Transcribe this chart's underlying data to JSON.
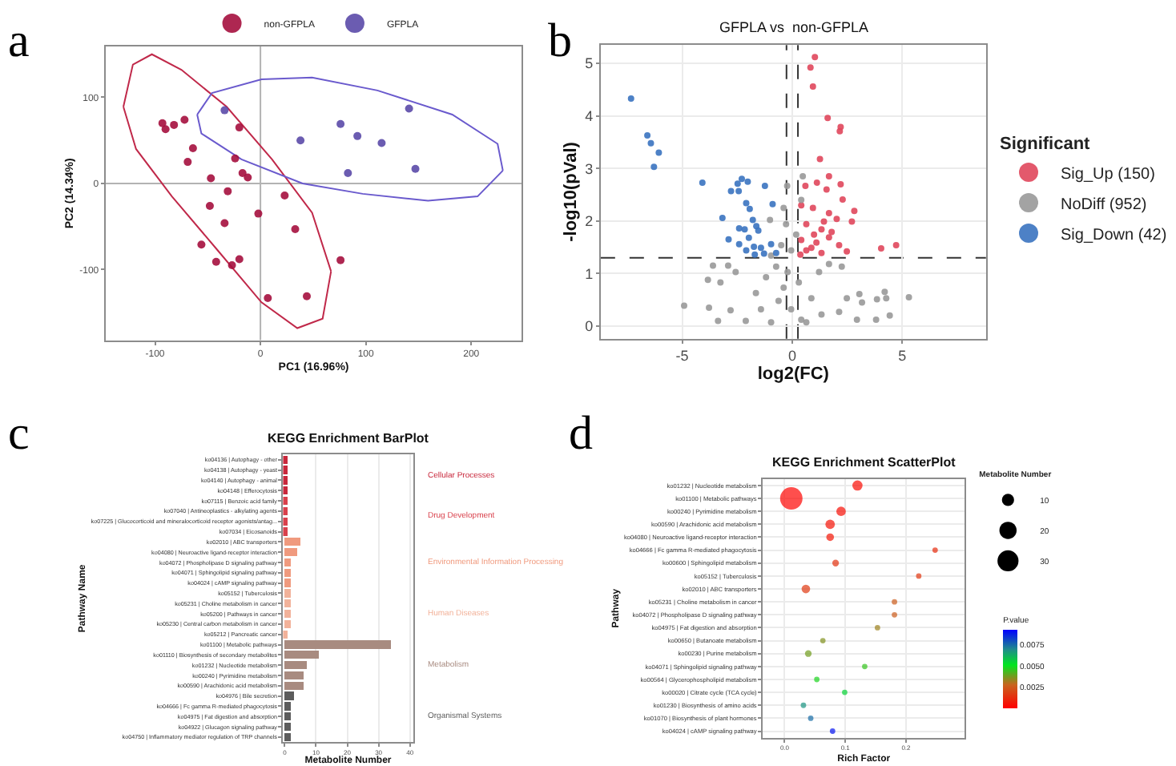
{
  "chart_data": [
    {
      "type": "scatter",
      "xlabel": "PC1 (16.96%)",
      "ylabel": "PC2 (14.34%)",
      "annotations": [
        "a"
      ],
      "legend": "top",
      "marker": "circle",
      "grid": false,
      "xlim": [
        -147,
        248
      ],
      "ylim": [
        -182,
        159
      ],
      "xticks": [
        -100,
        0,
        100,
        200
      ],
      "yticks": [
        -100,
        0,
        100
      ],
      "ref_lines": [
        {
          "axis": "x",
          "value": 0,
          "color": "#b3b3b3"
        },
        {
          "axis": "y",
          "value": 0,
          "color": "#b3b3b3"
        }
      ],
      "series": [
        {
          "type": "line",
          "marker": "none",
          "color": "#c0294a",
          "x": [
            -130,
            -121,
            -103,
            -75,
            -32,
            11,
            49,
            67
          ],
          "values": [
            89,
            138,
            150,
            132,
            89,
            28,
            -34,
            -102
          ]
        },
        {
          "type": "line",
          "marker": "none",
          "color": "#c0294a",
          "x": [
            -130,
            -118,
            -84,
            -41,
            1,
            35,
            59,
            67
          ],
          "values": [
            89,
            40,
            -15,
            -77,
            -138,
            -168,
            -157,
            -102
          ]
        },
        {
          "type": "line",
          "marker": "none",
          "color": "#6a5acd",
          "x": [
            -60,
            -46,
            1,
            49,
            111,
            182,
            225,
            230
          ],
          "values": [
            80,
            105,
            121,
            123,
            108,
            80,
            46,
            15
          ]
        },
        {
          "type": "line",
          "marker": "none",
          "color": "#6a5acd",
          "x": [
            -60,
            -56,
            -18,
            40,
            97,
            159,
            206,
            230
          ],
          "values": [
            80,
            58,
            28,
            0,
            -12,
            -20,
            -15,
            15
          ]
        },
        {
          "name": "non-GFPLA",
          "color": "#a50f3e",
          "x": [
            -93,
            -90,
            -82,
            -72,
            -64,
            -69,
            -20,
            -24,
            -17,
            -12,
            -47,
            -31,
            -48,
            -34,
            -2,
            23,
            33,
            -56,
            -42,
            -27,
            -20,
            7,
            44,
            76
          ],
          "values": [
            70,
            63,
            68,
            74,
            41,
            25,
            65,
            29,
            12,
            7,
            6,
            -9,
            -26,
            -46,
            -35,
            -14,
            -53,
            -71,
            -91,
            -95,
            -88,
            -133,
            -131,
            -89
          ]
        },
        {
          "name": "GFPLA",
          "color": "#5b4aa8",
          "x": [
            -34,
            38,
            76,
            92,
            115,
            83,
            141,
            147
          ],
          "values": [
            85,
            50,
            69,
            55,
            47,
            12,
            87,
            17
          ]
        }
      ]
    },
    {
      "type": "scatter",
      "title": "GFPLA vs  non-GFPLA",
      "xlabel": "log2(FC)",
      "ylabel": "-log10(pVal)",
      "legend_title": "Significant",
      "annotations": [
        "b"
      ],
      "legend": "right",
      "marker": "circle",
      "grid": true,
      "xlim": [
        -8.7,
        8.8
      ],
      "ylim": [
        -0.24,
        5.35
      ],
      "xticks": [
        -5,
        0,
        5
      ],
      "yticks": [
        0,
        1,
        2,
        3,
        4,
        5
      ],
      "ref_lines": [
        {
          "axis": "x",
          "value": -0.26,
          "color": "#333333",
          "line_style": "dashed"
        },
        {
          "axis": "x",
          "value": 0.26,
          "color": "#333333",
          "line_style": "dashed"
        },
        {
          "axis": "y",
          "value": 1.3,
          "color": "#333333",
          "line_style": "dashed"
        }
      ],
      "series": [
        {
          "name": "Sig_Up (150)",
          "color": "#e0475c",
          "x": [
            1.03,
            0.83,
            0.94,
            1.61,
            2.2,
            2.16,
            1.26,
            1.67,
            1.12,
            0.6,
            2.2,
            1.56,
            2.29,
            0.41,
            0.94,
            2.82,
            2.71,
            1.67,
            2.02,
            0.64,
            1.33,
            0.99,
            1.67,
            0.41,
            1.1,
            2.13,
            2.48,
            0.64,
            1.33,
            4.72,
            4.04,
            0.37,
            0.87,
            1.79,
            1.44
          ],
          "values": [
            5.12,
            4.92,
            4.56,
            3.96,
            3.79,
            3.71,
            3.18,
            2.85,
            2.73,
            2.67,
            2.7,
            2.6,
            2.41,
            2.3,
            2.25,
            2.19,
            1.99,
            2.15,
            2.04,
            1.94,
            1.84,
            1.74,
            1.69,
            1.64,
            1.59,
            1.54,
            1.42,
            1.44,
            1.39,
            1.54,
            1.48,
            1.36,
            1.49,
            1.79,
            1.99
          ]
        },
        {
          "name": "NoDiff (952)",
          "color": "#999999",
          "x": [
            -0.23,
            0.48,
            0.41,
            -0.39,
            -1.01,
            -0.28,
            0.18,
            -0.5,
            -0.05,
            -3.6,
            -2.91,
            -2.57,
            -3.83,
            -3.26,
            -4.91,
            -3.78,
            -2.8,
            -3.37,
            -2.11,
            -1.65,
            -1.19,
            -0.73,
            -0.39,
            -0.05,
            0.41,
            0.87,
            1.22,
            1.67,
            2.25,
            2.48,
            2.13,
            2.94,
            3.05,
            3.17,
            3.81,
            4.2,
            4.27,
            4.43,
            5.3,
            3.85,
            -0.96,
            0.64,
            -1.42,
            1.33,
            -0.62,
            0.3,
            -0.21,
            -0.96
          ],
          "values": [
            2.67,
            2.85,
            2.4,
            2.25,
            2.02,
            1.94,
            1.74,
            1.54,
            1.44,
            1.15,
            1.15,
            1.03,
            0.88,
            0.83,
            0.39,
            0.35,
            0.3,
            0.1,
            0.1,
            0.63,
            0.93,
            1.13,
            0.73,
            0.32,
            0.12,
            0.53,
            1.03,
            1.18,
            1.13,
            0.53,
            0.27,
            0.12,
            0.61,
            0.45,
            0.12,
            0.65,
            0.53,
            0.2,
            0.55,
            0.51,
            0.07,
            0.07,
            0.32,
            0.22,
            0.48,
            0.83,
            1.03,
            1.34
          ]
        },
        {
          "name": "Sig_Down (42)",
          "color": "#3a73c0",
          "x": [
            -7.32,
            -6.58,
            -6.42,
            -6.06,
            -6.28,
            -4.08,
            -2.29,
            -2.02,
            -2.48,
            -1.24,
            -2.78,
            -2.43,
            -2.09,
            -0.89,
            -1.93,
            -3.17,
            -1.79,
            -1.63,
            -1.54,
            -2.41,
            -2.16,
            -2.89,
            -1.97,
            -2.41,
            -1.74,
            -1.42,
            -0.96,
            -2.09,
            -1.28,
            -0.73,
            -1.7
          ],
          "values": [
            4.33,
            3.63,
            3.48,
            3.3,
            3.03,
            2.73,
            2.8,
            2.75,
            2.71,
            2.67,
            2.57,
            2.57,
            2.34,
            2.32,
            2.23,
            2.06,
            2.02,
            1.9,
            1.82,
            1.86,
            1.84,
            1.65,
            1.68,
            1.56,
            1.51,
            1.49,
            1.56,
            1.44,
            1.38,
            1.39,
            1.36
          ]
        }
      ]
    },
    {
      "type": "bar",
      "orientation": "horizontal",
      "stacked": true,
      "title": "KEGG Enrichment BarPlot",
      "xlabel": "Metabolite Number",
      "ylabel": "Pathway Name",
      "annotations": [
        "c"
      ],
      "legend": false,
      "grid": "x",
      "xlim": [
        -0.5,
        41
      ],
      "xticks": [
        0,
        10,
        20,
        30,
        40
      ],
      "categories": [
        "ko04136 | Autophagy - other",
        "ko04138 | Autophagy - yeast",
        "ko04140 | Autophagy - animal",
        "ko04148 | Efferocytosis",
        "ko07115 | Benzoic acid family",
        "ko07040 | Antineoplastics - alkylating agents",
        "ko07225 | Glucocorticoid and mineralocorticoid receptor agonists/antag...",
        "ko07034 | Eicosanoids",
        "ko02010 | ABC transporters",
        "ko04080 | Neuroactive ligand-receptor interaction",
        "ko04072 | Phospholipase D signaling pathway",
        "ko04071 | Sphingolipid signaling pathway",
        "ko04024 | cAMP signaling pathway",
        "ko05152 | Tuberculosis",
        "ko05231 | Choline metabolism in cancer",
        "ko05200 | Pathways in cancer",
        "ko05230 | Central carbon metabolism in cancer",
        "ko05212 | Pancreatic cancer",
        "ko01100 | Metabolic pathways",
        "ko01110 | Biosynthesis of secondary metabolites",
        "ko01232 | Nucleotide metabolism",
        "ko00240 | Pyrimidine metabolism",
        "ko00590 | Arachidonic acid metabolism",
        "ko04976 | Bile secretion",
        "ko04666 | Fc gamma R-mediated phagocytosis",
        "ko04975 | Fat digestion and absorption",
        "ko04922 | Glucagon signaling pathway",
        "ko04750 | Inflammatory mediator regulation of TRP channels"
      ],
      "series": [
        {
          "name": "Cellular Processes",
          "color": "#c8283c",
          "values": [
            1,
            1,
            1,
            1,
            null,
            null,
            null,
            null,
            null,
            null,
            null,
            null,
            null,
            null,
            null,
            null,
            null,
            null,
            null,
            null,
            null,
            null,
            null,
            null,
            null,
            null,
            null,
            null
          ]
        },
        {
          "name": "Drug Development",
          "color": "#d9414c",
          "values": [
            null,
            null,
            null,
            null,
            1,
            1,
            1,
            1,
            null,
            null,
            null,
            null,
            null,
            null,
            null,
            null,
            null,
            null,
            null,
            null,
            null,
            null,
            null,
            null,
            null,
            null,
            null,
            null
          ]
        },
        {
          "name": "Environmental Information Processing",
          "color": "#f09a7e",
          "values": [
            null,
            null,
            null,
            null,
            null,
            null,
            null,
            null,
            5,
            4,
            2,
            2,
            2,
            null,
            null,
            null,
            null,
            null,
            null,
            null,
            null,
            null,
            null,
            null,
            null,
            null,
            null,
            null
          ]
        },
        {
          "name": "Human Diseases",
          "color": "#f2b29a",
          "values": [
            null,
            null,
            null,
            null,
            null,
            null,
            null,
            null,
            null,
            null,
            null,
            null,
            null,
            2,
            2,
            2,
            2,
            1,
            null,
            null,
            null,
            null,
            null,
            null,
            null,
            null,
            null,
            null
          ]
        },
        {
          "name": "Metabolism",
          "color": "#a88b80",
          "values": [
            null,
            null,
            null,
            null,
            null,
            null,
            null,
            null,
            null,
            null,
            null,
            null,
            null,
            null,
            null,
            null,
            null,
            null,
            34,
            11,
            7,
            6,
            6,
            null,
            null,
            null,
            null,
            null
          ]
        },
        {
          "name": "Organismal Systems",
          "color": "#5c5c5c",
          "values": [
            null,
            null,
            null,
            null,
            null,
            null,
            null,
            null,
            null,
            null,
            null,
            null,
            null,
            null,
            null,
            null,
            null,
            null,
            null,
            null,
            null,
            null,
            null,
            3,
            2,
            2,
            2,
            2
          ]
        }
      ]
    },
    {
      "type": "bubble",
      "orientation": "horizontal",
      "title": "KEGG Enrichment ScatterPlot",
      "xlabel": "Rich Factor",
      "ylabel": "Pathway",
      "legend_title": "Metabolite Number",
      "clabel": "P.value",
      "annotations": [
        "d"
      ],
      "marker": "circle",
      "grid": true,
      "xlim": [
        -0.036,
        0.297
      ],
      "xticks": [
        {
          "value": 0,
          "label": "0.0"
        },
        {
          "value": 0.1,
          "label": "0.1"
        },
        {
          "value": 0.2,
          "label": "0.2"
        }
      ],
      "clim": [
        0,
        0.0093
      ],
      "cticks": [
        {
          "value": 0.0025,
          "label": "0.0025"
        },
        {
          "value": 0.005,
          "label": "0.0050"
        },
        {
          "value": 0.0075,
          "label": "0.0075"
        }
      ],
      "size_legend": [
        10,
        20,
        30
      ],
      "categories": [
        "ko01232 | Nucleotide metabolism",
        "ko01100 | Metabolic pathways",
        "ko00240 | Pyrimidine metabolism",
        "ko00590 | Arachidonic acid metabolism",
        "ko04080 | Neuroactive ligand-receptor interaction",
        "ko04666 | Fc gamma R-mediated phagocytosis",
        "ko00600 | Sphingolipid metabolism",
        "ko05152 | Tuberculosis",
        "ko02010 | ABC transporters",
        "ko05231 | Choline metabolism in cancer",
        "ko04072 | Phospholipase D signaling pathway",
        "ko04975 | Fat digestion and absorption",
        "ko00650 | Butanoate metabolism",
        "ko00230 | Purine metabolism",
        "ko04071 | Sphingolipid signaling pathway",
        "ko00564 | Glycerophospholipid metabolism",
        "ko00020 | Citrate cycle (TCA cycle)",
        "ko01230 | Biosynthesis of amino acids",
        "ko01070 | Biosynthesis of plant hormones",
        "ko04024 | cAMP signaling pathway"
      ],
      "values": [
        0.12,
        0.011,
        0.093,
        0.075,
        0.075,
        0.248,
        0.084,
        0.221,
        0.035,
        0.181,
        0.181,
        0.153,
        0.063,
        0.039,
        0.132,
        0.053,
        0.099,
        0.031,
        0.043,
        0.079
      ],
      "sizes": [
        7,
        34,
        6,
        6,
        4,
        2,
        3,
        2,
        5,
        2,
        2,
        2,
        2,
        3,
        2,
        2,
        2,
        2,
        2,
        2
      ],
      "cvalues": [
        0.0003,
        0.0001,
        0.0004,
        0.0005,
        0.0006,
        0.0012,
        0.0014,
        0.0015,
        0.0016,
        0.0026,
        0.0026,
        0.0033,
        0.0036,
        0.0038,
        0.0045,
        0.0048,
        0.0055,
        0.0068,
        0.0075,
        0.009
      ]
    }
  ]
}
